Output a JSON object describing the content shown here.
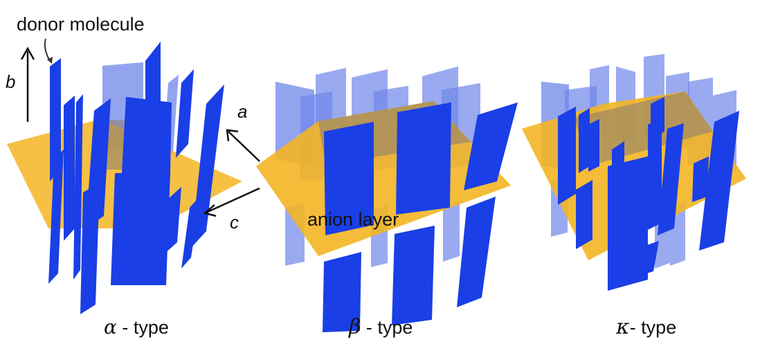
{
  "labels": {
    "donor": "donor molecule",
    "axis_b": "b",
    "axis_a": "a",
    "axis_c": "c",
    "anion": "anion layer"
  },
  "panels": [
    {
      "symbol": "α",
      "suffix": " - type"
    },
    {
      "symbol": "β",
      "suffix": " - type"
    },
    {
      "symbol": "κ",
      "suffix": "- type"
    }
  ],
  "colors": {
    "donor_front": "#1a3fe6",
    "donor_back": "#6f86ea",
    "anion_layer": "#f3b523",
    "anion_shadow": "#8f8170",
    "text": "#111111"
  }
}
